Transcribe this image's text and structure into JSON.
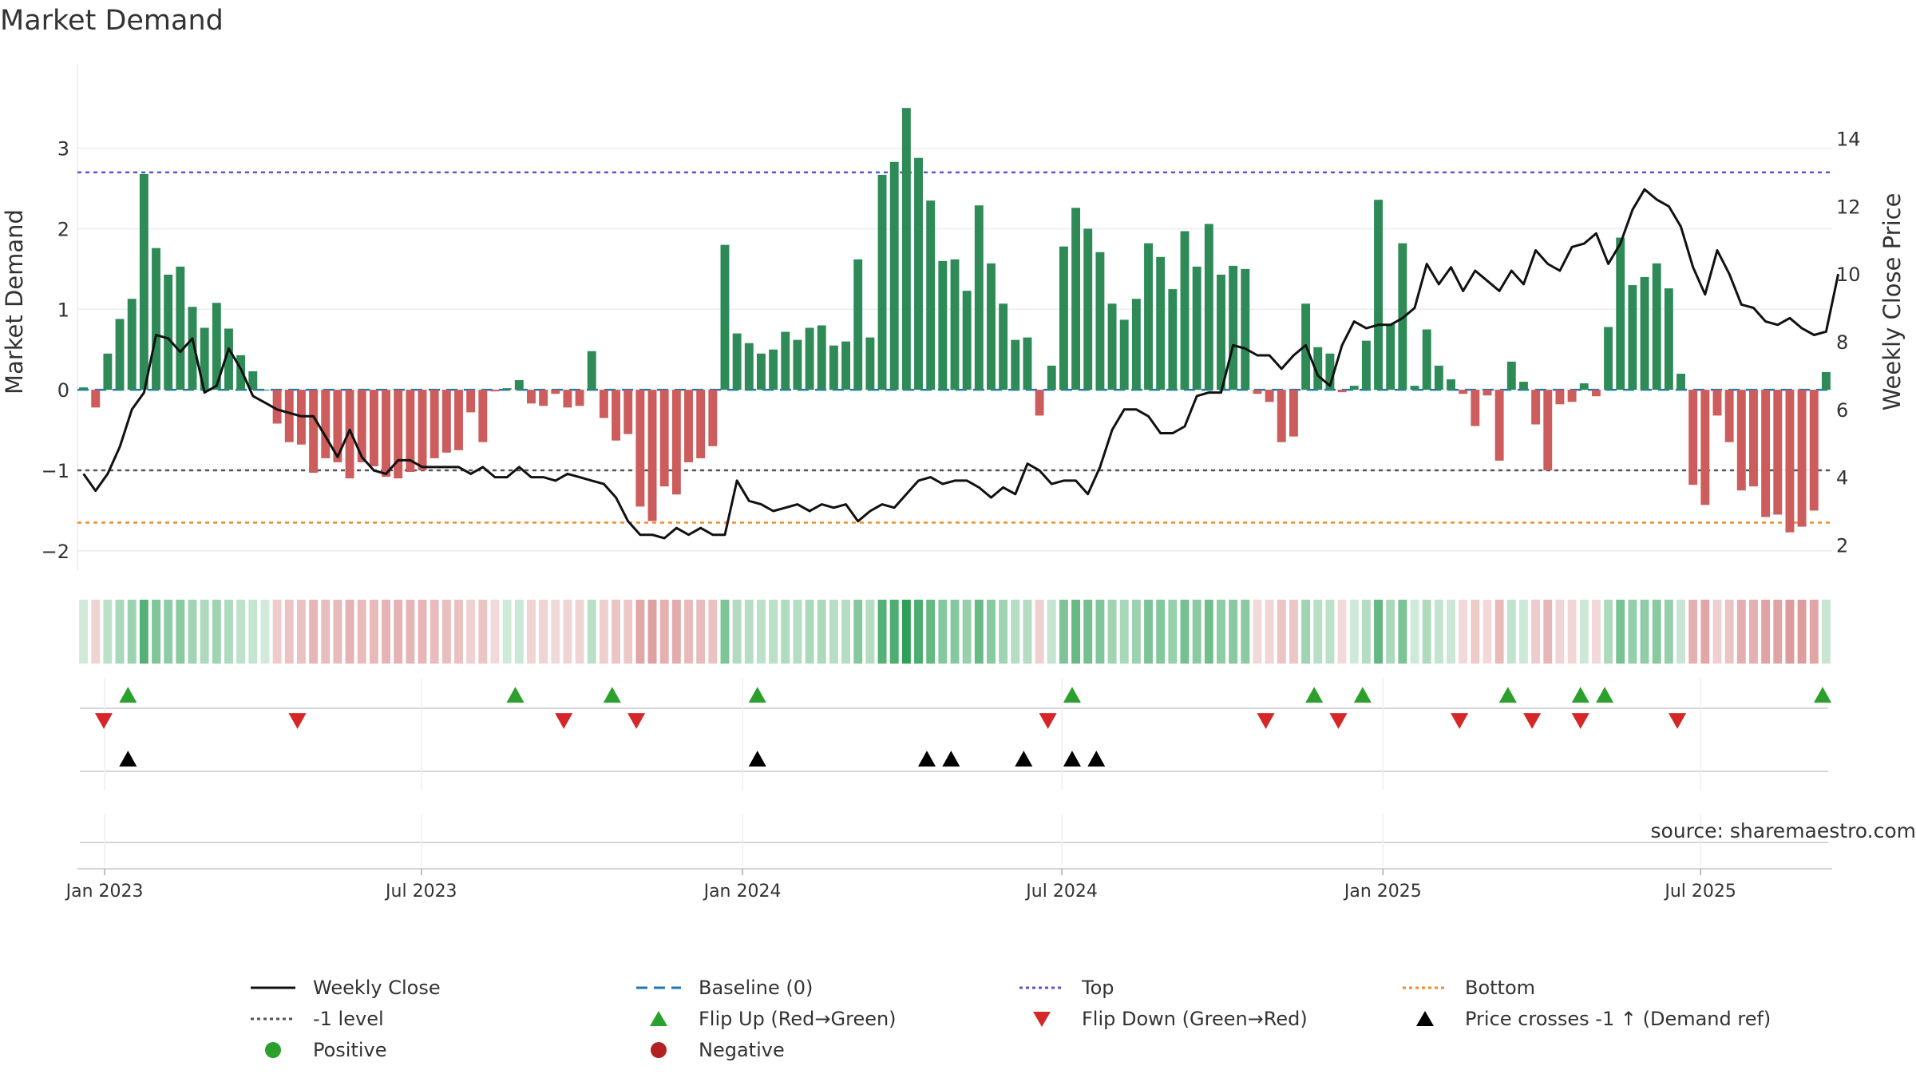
{
  "chart_data": {
    "type": "bar",
    "title": "Market Demand",
    "ylabel": "Market Demand",
    "y2label": "Weekly Close Price",
    "ylim": [
      -2.2,
      3.75
    ],
    "y2lim": [
      1.35,
      15.5
    ],
    "yticks": [
      "−2",
      "−1",
      "0",
      "1",
      "2",
      "3"
    ],
    "y2ticks": [
      "2",
      "4",
      "6",
      "8",
      "10",
      "12",
      "14"
    ],
    "xtick_labels": [
      "Jan 2023",
      "Jul 2023",
      "Jan 2024",
      "Jul 2024",
      "Jan 2025",
      "Jul 2025"
    ],
    "reference_lines": {
      "baseline": 0,
      "top": 2.7,
      "bottom": -1.65,
      "minus_one": -1
    },
    "series": [
      {
        "name": "Market Demand",
        "values": [
          0.03,
          -0.22,
          0.45,
          0.88,
          1.13,
          2.68,
          1.76,
          1.43,
          1.53,
          1.03,
          0.77,
          1.08,
          0.76,
          0.43,
          0.23,
          0,
          -0.42,
          -0.65,
          -0.68,
          -1.03,
          -0.85,
          -0.9,
          -1.1,
          -0.9,
          -0.95,
          -1.08,
          -1.1,
          -1.02,
          -1.0,
          -0.85,
          -0.78,
          -0.75,
          -0.28,
          -0.65,
          -0.02,
          0.02,
          0.12,
          -0.17,
          -0.2,
          -0.05,
          -0.22,
          -0.2,
          0.48,
          -0.35,
          -0.63,
          -0.55,
          -1.45,
          -1.63,
          -1.2,
          -1.3,
          -0.9,
          -0.85,
          -0.7,
          1.8,
          0.7,
          0.58,
          0.45,
          0.5,
          0.72,
          0.62,
          0.77,
          0.8,
          0.55,
          0.6,
          1.62,
          0.65,
          2.67,
          2.83,
          3.5,
          2.88,
          2.35,
          1.6,
          1.62,
          1.23,
          2.29,
          1.57,
          1.07,
          0.62,
          0.65,
          -0.32,
          0.3,
          1.78,
          2.26,
          2.0,
          1.71,
          1.07,
          0.87,
          1.13,
          1.82,
          1.65,
          1.25,
          1.97,
          1.53,
          2.06,
          1.43,
          1.54,
          1.5,
          -0.05,
          -0.15,
          -0.65,
          -0.58,
          1.07,
          0.53,
          0.45,
          -0.03,
          0.05,
          0.61,
          2.36,
          0.82,
          1.82,
          0.05,
          0.75,
          0.3,
          0.13,
          -0.05,
          -0.45,
          -0.07,
          -0.88,
          0.35,
          0.1,
          -0.43,
          -1.0,
          -0.18,
          -0.15,
          0.08,
          -0.08,
          0.78,
          1.89,
          1.3,
          1.4,
          1.57,
          1.26,
          0.2,
          -1.18,
          -1.43,
          -0.32,
          -0.65,
          -1.25,
          -1.2,
          -1.58,
          -1.55,
          -1.77,
          -1.7,
          -1.5,
          0.22
        ]
      },
      {
        "name": "Weekly Close",
        "values": [
          4.1,
          3.6,
          4.1,
          4.9,
          6.0,
          6.5,
          8.2,
          8.1,
          7.7,
          8.1,
          6.5,
          6.7,
          7.8,
          7.2,
          6.4,
          6.2,
          6.0,
          5.9,
          5.8,
          5.8,
          5.2,
          4.6,
          5.4,
          4.6,
          4.2,
          4.1,
          4.5,
          4.5,
          4.3,
          4.3,
          4.3,
          4.3,
          4.1,
          4.3,
          4.0,
          4.0,
          4.3,
          4.0,
          4.0,
          3.9,
          4.1,
          4.0,
          3.9,
          3.8,
          3.4,
          2.7,
          2.3,
          2.3,
          2.2,
          2.5,
          2.3,
          2.5,
          2.3,
          2.3,
          3.9,
          3.3,
          3.2,
          3.0,
          3.1,
          3.2,
          3.0,
          3.2,
          3.1,
          3.2,
          2.7,
          3.0,
          3.2,
          3.1,
          3.5,
          3.9,
          4.0,
          3.8,
          3.9,
          3.9,
          3.7,
          3.4,
          3.7,
          3.5,
          4.4,
          4.2,
          3.8,
          3.9,
          3.9,
          3.5,
          4.3,
          5.4,
          6.0,
          6.0,
          5.8,
          5.3,
          5.3,
          5.5,
          6.4,
          6.5,
          6.5,
          7.9,
          7.8,
          7.6,
          7.6,
          7.2,
          7.6,
          7.9,
          7.0,
          6.7,
          7.9,
          8.6,
          8.4,
          8.5,
          8.5,
          8.7,
          9.0,
          10.3,
          9.7,
          10.2,
          9.5,
          10.1,
          9.8,
          9.5,
          10.1,
          9.7,
          10.7,
          10.3,
          10.1,
          10.8,
          10.9,
          11.2,
          10.3,
          10.9,
          11.9,
          12.5,
          12.2,
          12.0,
          11.4,
          10.2,
          9.4,
          10.7,
          10.0,
          9.1,
          9.0,
          8.6,
          8.5,
          8.7,
          8.4,
          8.2,
          8.3,
          10.0
        ]
      }
    ]
  },
  "signals": {
    "flip_up_weeks": [
      1,
      17,
      21,
      27,
      40,
      50,
      52,
      58,
      61,
      62,
      71
    ],
    "flip_down_weeks": [
      0,
      8,
      19,
      22,
      39,
      48,
      51,
      56,
      59,
      61,
      65
    ],
    "price_cross_weeks": [
      1,
      27,
      34,
      35,
      38,
      40,
      41
    ]
  },
  "watermark": "source: sharemaestro.com",
  "legend": {
    "items": [
      {
        "label": "Weekly Close",
        "symbol": "line-solid",
        "color": "#111111"
      },
      {
        "label": "Baseline (0)",
        "symbol": "line-dashed",
        "color": "#1f77b4"
      },
      {
        "label": "Top",
        "symbol": "line-dotted",
        "color": "#5a55d0"
      },
      {
        "label": "Bottom",
        "symbol": "line-dotted",
        "color": "#f28c28"
      },
      {
        "label": "-1 level",
        "symbol": "line-dotted",
        "color": "#555555"
      },
      {
        "label": "Flip Up (Red→Green)",
        "symbol": "triangle-up",
        "color": "#2ca02c"
      },
      {
        "label": "Flip Down (Green→Red)",
        "symbol": "triangle-down",
        "color": "#d62728"
      },
      {
        "label": "Price crosses -1 ↑ (Demand ref)",
        "symbol": "triangle-up",
        "color": "#000000"
      },
      {
        "label": "Positive",
        "symbol": "circle",
        "color": "#2ca02c"
      },
      {
        "label": "Negative",
        "symbol": "circle",
        "color": "#b22222"
      }
    ]
  },
  "colors": {
    "positive": "#2e8b57",
    "negative": "#cd5c5c",
    "baseline": "#1f77b4",
    "top": "#5a55d0",
    "bottom": "#f28c28",
    "minus_one": "#555555",
    "flip_up": "#2ca02c",
    "flip_down": "#d62728",
    "price_cross": "#000000"
  }
}
